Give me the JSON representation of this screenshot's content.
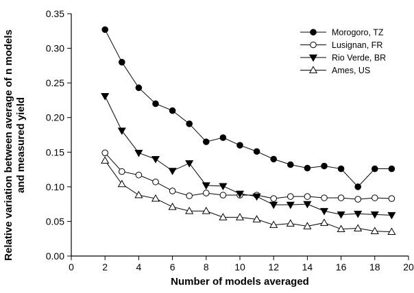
{
  "chart_data": {
    "type": "line",
    "title": "",
    "xlabel": "Number of models averaged",
    "ylabel_line1": "Relative variation between average of n models",
    "ylabel_line2": "and measured yield",
    "xlim": [
      0,
      20
    ],
    "ylim": [
      0,
      0.35
    ],
    "xticks": [
      0,
      2,
      4,
      6,
      8,
      10,
      12,
      14,
      16,
      18,
      20
    ],
    "yticks": [
      0.0,
      0.05,
      0.1,
      0.15,
      0.2,
      0.25,
      0.3,
      0.35
    ],
    "xtick_labels": [
      "0",
      "2",
      "4",
      "6",
      "8",
      "10",
      "12",
      "14",
      "16",
      "18",
      "20"
    ],
    "ytick_labels": [
      "0.00",
      "0.05",
      "0.10",
      "0.15",
      "0.20",
      "0.25",
      "0.30",
      "0.35"
    ],
    "grid": false,
    "legend_position": "top-right",
    "x": [
      2,
      3,
      4,
      5,
      6,
      7,
      8,
      9,
      10,
      11,
      12,
      13,
      14,
      15,
      16,
      17,
      18,
      19
    ],
    "series": [
      {
        "name": "Morogoro, TZ",
        "marker": "circle-filled",
        "values": [
          0.327,
          0.28,
          0.243,
          0.22,
          0.21,
          0.191,
          0.165,
          0.171,
          0.16,
          0.151,
          0.14,
          0.132,
          0.127,
          0.13,
          0.126,
          0.1,
          0.126,
          0.126
        ]
      },
      {
        "name": "Lusignan, FR",
        "marker": "circle-open",
        "values": [
          0.149,
          0.122,
          0.117,
          0.107,
          0.094,
          0.087,
          0.091,
          0.088,
          0.088,
          0.088,
          0.083,
          0.086,
          0.086,
          0.084,
          0.084,
          0.082,
          0.084,
          0.083
        ]
      },
      {
        "name": "Rio Verde, BR",
        "marker": "triangle-down-filled",
        "values": [
          0.231,
          0.181,
          0.149,
          0.14,
          0.123,
          0.134,
          0.102,
          0.101,
          0.09,
          0.086,
          0.074,
          0.074,
          0.075,
          0.065,
          0.06,
          0.061,
          0.06,
          0.059
        ]
      },
      {
        "name": "Ames, US",
        "marker": "triangle-up-open",
        "values": [
          0.138,
          0.104,
          0.088,
          0.083,
          0.071,
          0.065,
          0.065,
          0.056,
          0.056,
          0.053,
          0.045,
          0.047,
          0.043,
          0.048,
          0.039,
          0.04,
          0.036,
          0.035
        ]
      }
    ]
  }
}
